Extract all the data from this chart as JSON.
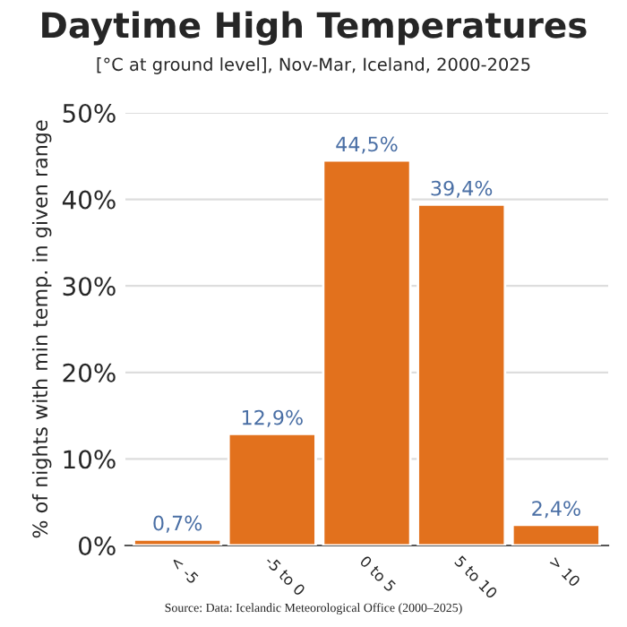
{
  "chart_data": {
    "type": "bar",
    "title": "Daytime High Temperatures",
    "subtitle": "[°C at ground level], Nov-Mar, Iceland, 2000-2025",
    "ylabel": "% of nights with min temp. in given range",
    "categories": [
      "< -5",
      "-5 to 0",
      "0 to 5",
      "5 to 10",
      "> 10"
    ],
    "values": [
      0.7,
      12.9,
      44.5,
      39.4,
      2.4
    ],
    "value_labels": [
      "0,7%",
      "12,9%",
      "44,5%",
      "39,4%",
      "2,4%"
    ],
    "color": "#e2711d",
    "ylim": [
      0,
      50
    ],
    "yticks": [
      {
        "value": 0,
        "label": "0%"
      },
      {
        "value": 10,
        "label": "10%"
      },
      {
        "value": 20,
        "label": "20%"
      },
      {
        "value": 30,
        "label": "30%"
      },
      {
        "value": 40,
        "label": "40%"
      },
      {
        "value": 50,
        "label": "50%"
      }
    ],
    "grid": "y",
    "annotations": [
      "Source: Data: Icelandic Meteorological Office (2000–2025)"
    ]
  }
}
